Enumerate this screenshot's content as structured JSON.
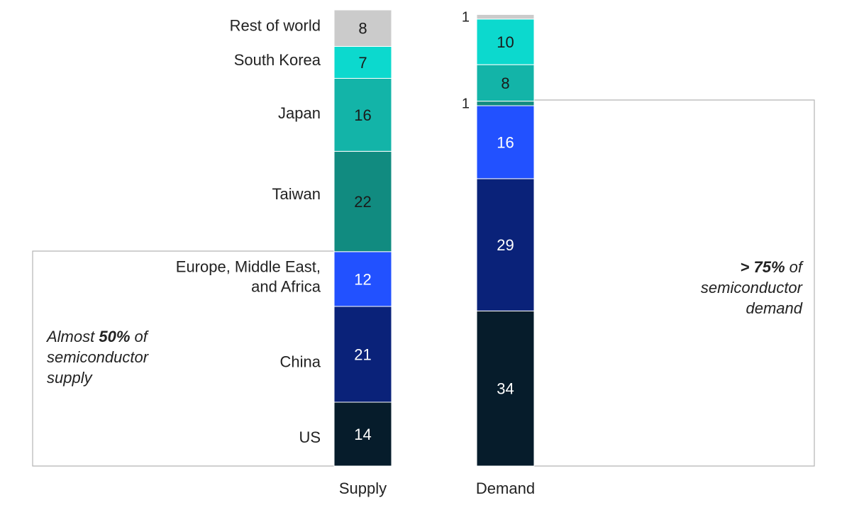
{
  "chart_data": {
    "type": "bar",
    "stacked": true,
    "unit": "%",
    "categories": [
      "Supply",
      "Demand"
    ],
    "segments": [
      {
        "name": "US",
        "color": "#061c2b",
        "values": [
          14,
          34
        ]
      },
      {
        "name": "China",
        "color": "#0a2279",
        "values": [
          21,
          29
        ]
      },
      {
        "name": "Europe, Middle East, and Africa",
        "name_lines": [
          "Europe, Middle East,",
          "and Africa"
        ],
        "color": "#2251ff",
        "values": [
          12,
          16
        ]
      },
      {
        "name": "Taiwan",
        "color": "#118b80",
        "values": [
          22,
          1
        ]
      },
      {
        "name": "Japan",
        "color": "#13b4a8",
        "values": [
          16,
          8
        ]
      },
      {
        "name": "South Korea",
        "color": "#0cd9ce",
        "values": [
          7,
          10
        ]
      },
      {
        "name": "Rest of world",
        "color": "#cbcbcb",
        "values": [
          8,
          1
        ]
      }
    ]
  },
  "annotations": {
    "supply": {
      "prefix": "Almost ",
      "bold": "50%",
      "suffix": " of",
      "line2": "semiconductor",
      "line3": "supply"
    },
    "demand": {
      "bold": "> 75%",
      "suffix": " of",
      "line2": "semiconductor",
      "line3": "demand"
    }
  }
}
